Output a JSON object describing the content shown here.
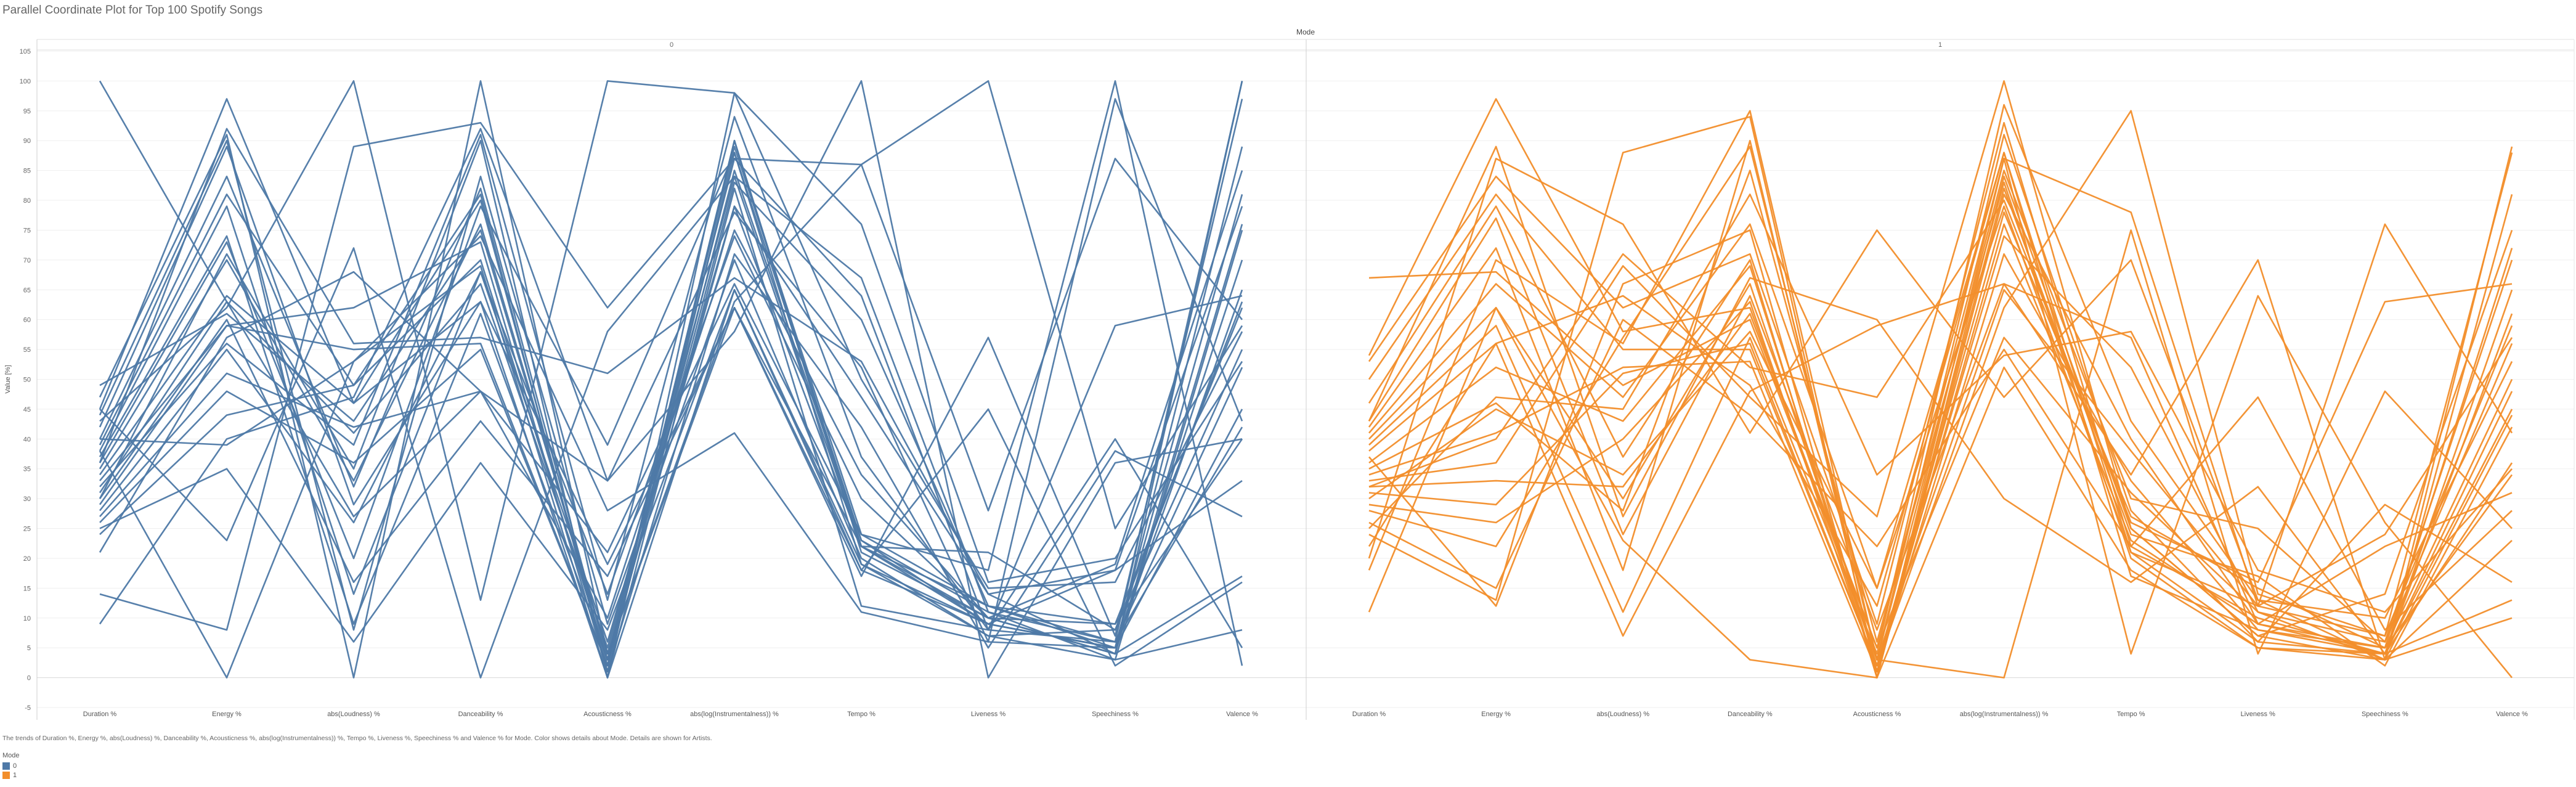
{
  "title": "Parallel Coordinate Plot for Top 100 Spotify Songs",
  "column_header": "Mode",
  "caption": "The trends of Duration %, Energy %, abs(Loudness) %, Danceability %, Acousticness %, abs(log(Instrumentalness)) %, Tempo %, Liveness %, Speechiness % and Valence % for Mode.  Color shows details about Mode.  Details are shown for Artists.",
  "legend": {
    "title": "Mode",
    "items": [
      {
        "label": "0",
        "color": "#4e79a7"
      },
      {
        "label": "1",
        "color": "#f28e2b"
      }
    ]
  },
  "chart_data": {
    "type": "line",
    "ylabel": "Value [%]",
    "ylim": [
      -5,
      105
    ],
    "yticks": [
      -5,
      0,
      5,
      10,
      15,
      20,
      25,
      30,
      35,
      40,
      45,
      50,
      55,
      60,
      65,
      70,
      75,
      80,
      85,
      90,
      95,
      100,
      105
    ],
    "categories": [
      "Duration %",
      "Energy %",
      "abs(Loudness) %",
      "Danceability %",
      "Acousticness %",
      "abs(log(Instrumentalness)) %",
      "Tempo %",
      "Liveness %",
      "Speechiness %",
      "Valence %"
    ],
    "grid": true,
    "panels": [
      {
        "mode": "0",
        "color": "#4e79a7",
        "series": [
          {
            "values": [
              100,
              63,
              41,
              66,
              5,
              84,
              22,
              12,
              9,
              62
            ]
          },
          {
            "values": [
              49,
              61,
              43,
              75,
              4,
              63,
              86,
              28,
              87,
              60
            ]
          },
          {
            "values": [
              45,
              97,
              46,
              80,
              2,
              90,
              21,
              10,
              4,
              100
            ]
          },
          {
            "values": [
              44,
              90,
              8,
              84,
              9,
              70,
              20,
              7,
              3,
              75
            ]
          },
          {
            "values": [
              42,
              89,
              29,
              63,
              19,
              62,
              18,
              9,
              5,
              89
            ]
          },
          {
            "values": [
              40,
              84,
              32,
              82,
              3,
              89,
              24,
              12,
              6,
              52
            ]
          },
          {
            "values": [
              39,
              81,
              49,
              70,
              3,
              79,
              47,
              14,
              18,
              79
            ]
          },
          {
            "values": [
              38,
              79,
              14,
              68,
              14,
              74,
              30,
              10,
              4,
              76
            ]
          },
          {
            "values": [
              37,
              74,
              9,
              61,
              3,
              90,
              22,
              21,
              8,
              63
            ]
          },
          {
            "values": [
              36,
              73,
              20,
              79,
              39,
              88,
              23,
              9,
              5,
              45
            ]
          },
          {
            "values": [
              35,
              70,
              33,
              76,
              4,
              87,
              64,
              8,
              6,
              100
            ]
          },
          {
            "values": [
              34,
              64,
              46,
              63,
              0,
              98,
              76,
              16,
              20,
              53
            ]
          },
          {
            "values": [
              33,
              59,
              55,
              56,
              2,
              83,
              60,
              12,
              5,
              65
            ]
          },
          {
            "values": [
              32,
              56,
              39,
              91,
              13,
              94,
              37,
              8,
              59,
              64
            ]
          },
          {
            "values": [
              31,
              63,
              27,
              48,
              10,
              75,
              34,
              10,
              9,
              40
            ]
          },
          {
            "values": [
              30,
              60,
              16,
              43,
              17,
              62,
              22,
              10,
              19,
              85
            ]
          },
          {
            "values": [
              29,
              59,
              62,
              73,
              1,
              88,
              19,
              7,
              8,
              55
            ]
          },
          {
            "values": [
              28,
              55,
              26,
              68,
              6,
              79,
              22,
              9,
              18,
              33
            ]
          },
          {
            "values": [
              27,
              51,
              42,
              48,
              33,
              78,
              52,
              6,
              5,
              81
            ]
          },
          {
            "values": [
              26,
              48,
              36,
              55,
              2,
              85,
              23,
              11,
              6,
              42
            ]
          },
          {
            "values": [
              25,
              35,
              6,
              36,
              8,
              65,
              19,
              9,
              5,
              70
            ]
          },
          {
            "values": [
              24,
              44,
              49,
              81,
              1,
              71,
              42,
              5,
              38,
              27
            ]
          },
          {
            "values": [
              43,
              62,
              100,
              13,
              100,
              98,
              50,
              15,
              16,
              58
            ]
          },
          {
            "values": [
              14,
              8,
              89,
              93,
              62,
              87,
              86,
              100,
              25,
              59
            ]
          },
          {
            "values": [
              9,
              40,
              47,
              92,
              33,
              58,
              100,
              0,
              36,
              40
            ]
          },
          {
            "values": [
              47,
              91,
              0,
              100,
              4,
              62,
              17,
              57,
              7,
              97
            ]
          },
          {
            "values": [
              38,
              0,
              53,
              69,
              0,
              65,
              18,
              45,
              2,
              16
            ]
          },
          {
            "values": [
              45,
              23,
              72,
              0,
              58,
              84,
              67,
              11,
              3,
              8
            ]
          },
          {
            "values": [
              21,
              57,
              68,
              48,
              21,
              66,
              24,
              18,
              100,
              2
            ]
          },
          {
            "values": [
              40,
              39,
              53,
              74,
              28,
              41,
              11,
              6,
              97,
              43
            ]
          },
          {
            "values": [
              36,
              92,
              56,
              57,
              51,
              67,
              53,
              14,
              4,
              17
            ]
          },
          {
            "values": [
              30,
              71,
              35,
              90,
              0,
              82,
              12,
              8,
              40,
              5
            ]
          }
        ]
      },
      {
        "mode": "1",
        "color": "#f28e2b",
        "series": [
          {
            "values": [
              67,
              68,
              49,
              60,
              5,
              87,
              78,
              12,
              7,
              88
            ]
          },
          {
            "values": [
              54,
              97,
              58,
              62,
              3,
              85,
              30,
              25,
              6,
              70
            ]
          },
          {
            "values": [
              53,
              84,
              62,
              71,
              9,
              93,
              22,
              10,
              4,
              61
            ]
          },
          {
            "values": [
              50,
              81,
              55,
              55,
              2,
              78,
              27,
              15,
              5,
              50
            ]
          },
          {
            "values": [
              46,
              79,
              37,
              70,
              0,
              84,
              25,
              7,
              3,
              89
            ]
          },
          {
            "values": [
              43,
              77,
              24,
              64,
              8,
              66,
              57,
              9,
              4,
              65
            ]
          },
          {
            "values": [
              42,
              72,
              18,
              90,
              1,
              82,
              24,
              17,
              2,
              42
            ]
          },
          {
            "values": [
              41,
              66,
              47,
              76,
              15,
              79,
              21,
              12,
              24,
              57
            ]
          },
          {
            "values": [
              40,
              62,
              30,
              66,
              3,
              91,
              28,
              6,
              4,
              45
            ]
          },
          {
            "values": [
              39,
              59,
              11,
              57,
              4,
              96,
              43,
              13,
              10,
              53
            ]
          },
          {
            "values": [
              38,
              56,
              64,
              49,
              12,
              88,
              17,
              8,
              5,
              72
            ]
          },
          {
            "values": [
              36,
              52,
              43,
              69,
              2,
              74,
              52,
              11,
              6,
              56
            ]
          },
          {
            "values": [
              35,
              46,
              28,
              85,
              6,
              83,
              20,
              5,
              3,
              81
            ]
          },
          {
            "values": [
              34,
              41,
              52,
              53,
              1,
              71,
              33,
              8,
              4,
              48
            ]
          },
          {
            "values": [
              33,
              36,
              69,
              47,
              27,
              100,
              25,
              7,
              14,
              75
            ]
          },
          {
            "values": [
              32,
              33,
              32,
              61,
              5,
              57,
              31,
              11,
              3,
              44
            ]
          },
          {
            "values": [
              31,
              29,
              51,
              56,
              2,
              62,
              95,
              14,
              7,
              59
            ]
          },
          {
            "values": [
              29,
              26,
              40,
              63,
              1,
              76,
              23,
              9,
              5,
              34
            ]
          },
          {
            "values": [
              28,
              22,
              57,
              89,
              3,
              65,
              38,
              12,
              76,
              41
            ]
          },
          {
            "values": [
              26,
              15,
              60,
              44,
              22,
              55,
              22,
              47,
              8,
              28
            ]
          },
          {
            "values": [
              24,
              13,
              88,
              94,
              0,
              52,
              18,
              5,
              4,
              36
            ]
          },
          {
            "values": [
              22,
              56,
              7,
              48,
              59,
              66,
              34,
              70,
              3,
              10
            ]
          },
          {
            "values": [
              20,
              87,
              76,
              41,
              75,
              47,
              70,
              13,
              3,
              23
            ]
          },
          {
            "values": [
              18,
              70,
              56,
              95,
              3,
              0,
              75,
              4,
              48,
              25
            ]
          },
          {
            "values": [
              11,
              62,
              23,
              3,
              0,
              87,
              4,
              64,
              26,
              0
            ]
          },
          {
            "values": [
              32,
              40,
              71,
              52,
              47,
              80,
              26,
              16,
              63,
              66
            ]
          },
          {
            "values": [
              25,
              47,
              45,
              81,
              34,
              54,
              58,
              18,
              11,
              35
            ]
          },
          {
            "values": [
              43,
              89,
              27,
              67,
              60,
              30,
              16,
              32,
              4,
              13
            ]
          },
          {
            "values": [
              37,
              12,
              66,
              75,
              0,
              81,
              40,
              9,
              22,
              31
            ]
          },
          {
            "values": [
              30,
              45,
              34,
              58,
              15,
              88,
              21,
              6,
              29,
              16
            ]
          }
        ]
      }
    ]
  }
}
